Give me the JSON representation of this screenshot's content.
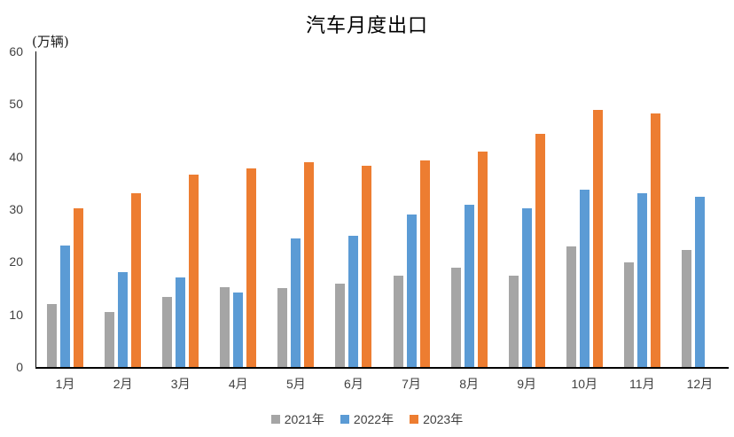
{
  "chart_data": {
    "type": "bar",
    "title": "汽车月度出口",
    "unit_label": "(万辆)",
    "categories": [
      "1月",
      "2月",
      "3月",
      "4月",
      "5月",
      "6月",
      "7月",
      "8月",
      "9月",
      "10月",
      "11月",
      "12月"
    ],
    "series": [
      {
        "name": "2021年",
        "color": "#A5A5A5",
        "values": [
          11.9,
          10.5,
          13.3,
          15.1,
          15.0,
          15.8,
          17.4,
          18.8,
          17.3,
          23.0,
          19.9,
          22.3
        ]
      },
      {
        "name": "2022年",
        "color": "#5B9BD5",
        "values": [
          23.1,
          18.0,
          17.0,
          14.1,
          24.5,
          24.9,
          29.0,
          30.8,
          30.1,
          33.7,
          33.0,
          32.4
        ]
      },
      {
        "name": "2023年",
        "color": "#ED7D31",
        "values": [
          30.1,
          33.0,
          36.5,
          37.7,
          38.9,
          38.2,
          39.2,
          40.9,
          44.4,
          48.9,
          48.2,
          null
        ]
      }
    ],
    "ylim": [
      0,
      60
    ],
    "ytick_step": 10,
    "yticks": [
      0,
      10,
      20,
      30,
      40,
      50,
      60
    ],
    "xlabel": "",
    "ylabel": "",
    "grid": false,
    "legend_position": "bottom",
    "axis_color": "#000000",
    "tick_label_color": "#404040"
  }
}
